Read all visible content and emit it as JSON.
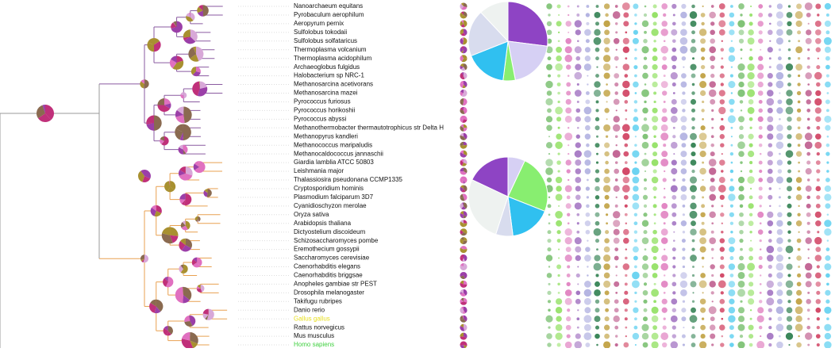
{
  "species": [
    "Nanoarchaeum equitans",
    "Pyrobaculum aerophilum",
    "Aeropyrum pernix",
    "Sulfolobus tokodaii",
    "Sulfolobus solfataricus",
    "Thermoplasma volcanium",
    "Thermoplasma acidophilum",
    "Archaeoglobus fulgidus",
    "Halobacterium sp NRC-1",
    "Methanosarcina acetivorans",
    "Methanosarcina mazei",
    "Pyrococcus furiosus",
    "Pyrococcus horikoshii",
    "Pyrococcus abyssi",
    "Methanothermobacter thermautotrophicus str Delta H",
    "Methanopyrus kandleri",
    "Methanococcus maripaludis",
    "Methanocaldococcus jannaschii",
    "Giardia lamblia ATCC 50803",
    "Leishmania major",
    "Thalassiosira pseudonana CCMP1335",
    "Cryptosporidium hominis",
    "Plasmodium falciparum 3D7",
    "Cyanidioschyzon merolae",
    "Oryza sativa",
    "Arabidopsis thaliana",
    "Dictyostelium discoideum",
    "Schizosaccharomyces pombe",
    "Eremothecium gossypii",
    "Saccharomyces cerevisiae",
    "Caenorhabditis elegans",
    "Caenorhabditis briggsae",
    "Anopheles gambiae str PEST",
    "Drosophila melanogaster",
    "Takifugu rubripes",
    "Danio rerio",
    "Gallus gallus",
    "Rattus norvegicus",
    "Mus musculus",
    "Homo sapiens"
  ],
  "highlight_colors": {
    "36": "#e8e020",
    "39": "#40d040"
  },
  "pies": [
    {
      "values": [
        27,
        20,
        5,
        17,
        19,
        12
      ],
      "colors": [
        "#8e44c4",
        "#d6d0f4",
        "#88ee70",
        "#30c0f0",
        "#d8dcee",
        "#eef2f0"
      ]
    },
    {
      "values": [
        7,
        24,
        17,
        7,
        27,
        18
      ],
      "colors": [
        "#d6d0f4",
        "#88ee70",
        "#30c0f0",
        "#d8dcee",
        "#eef2f0",
        "#8e44c4"
      ]
    }
  ]
}
